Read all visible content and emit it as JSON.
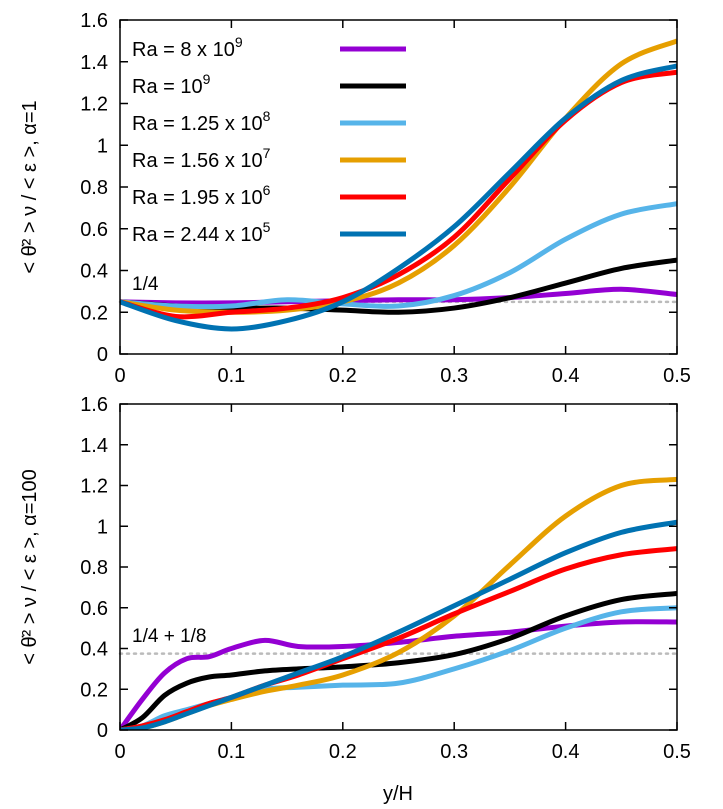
{
  "chart_data": [
    {
      "type": "line",
      "panel": "top",
      "ylabel": "< θ̇² > ν / < ε >,  α=1",
      "xlabel": "",
      "xlim": [
        0,
        0.5
      ],
      "ylim": [
        0,
        1.6
      ],
      "xticks": [
        0,
        0.1,
        0.2,
        0.3,
        0.4,
        0.5
      ],
      "xtick_labels": [
        "0",
        "0.1",
        "0.2",
        "0.3",
        "0.4",
        "0.5"
      ],
      "yticks": [
        0,
        0.2,
        0.4,
        0.6,
        0.8,
        1.0,
        1.2,
        1.4,
        1.6
      ],
      "ytick_labels": [
        "0",
        "0.2",
        "0.4",
        "0.6",
        "0.8",
        "1",
        "1.2",
        "1.4",
        "1.6"
      ],
      "legend_position": "top-left",
      "reference_line": {
        "value": 0.25,
        "label": "1/4",
        "color": "#bbbbbb"
      },
      "series": [
        {
          "name": "Ra = 8 x 10⁹",
          "legend_base": "Ra = 8 x 10",
          "legend_exp": "9",
          "color": "#9400d3",
          "x": [
            0,
            0.05,
            0.1,
            0.15,
            0.2,
            0.25,
            0.3,
            0.35,
            0.4,
            0.45,
            0.5
          ],
          "y": [
            0.25,
            0.245,
            0.245,
            0.25,
            0.255,
            0.26,
            0.26,
            0.27,
            0.29,
            0.31,
            0.285
          ]
        },
        {
          "name": "Ra = 10⁹",
          "legend_base": "Ra = 10",
          "legend_exp": "9",
          "color": "#000000",
          "x": [
            0,
            0.05,
            0.1,
            0.15,
            0.2,
            0.25,
            0.3,
            0.35,
            0.4,
            0.45,
            0.5
          ],
          "y": [
            0.25,
            0.23,
            0.22,
            0.22,
            0.21,
            0.2,
            0.22,
            0.27,
            0.34,
            0.41,
            0.45
          ]
        },
        {
          "name": "Ra = 1.25 x 10⁸",
          "legend_base": "Ra = 1.25 x 10",
          "legend_exp": "8",
          "color": "#56b4e9",
          "x": [
            0,
            0.05,
            0.1,
            0.15,
            0.2,
            0.25,
            0.3,
            0.35,
            0.4,
            0.45,
            0.5
          ],
          "y": [
            0.25,
            0.23,
            0.23,
            0.26,
            0.24,
            0.23,
            0.28,
            0.39,
            0.55,
            0.67,
            0.72
          ]
        },
        {
          "name": "Ra = 1.56 x 10⁷",
          "legend_base": "Ra = 1.56 x 10",
          "legend_exp": "7",
          "color": "#e69f00",
          "x": [
            0,
            0.05,
            0.1,
            0.15,
            0.2,
            0.25,
            0.3,
            0.35,
            0.4,
            0.45,
            0.5
          ],
          "y": [
            0.25,
            0.21,
            0.2,
            0.21,
            0.25,
            0.34,
            0.52,
            0.8,
            1.13,
            1.39,
            1.5
          ]
        },
        {
          "name": "Ra = 1.95 x 10⁶",
          "legend_base": "Ra = 1.95 x 10",
          "legend_exp": "6",
          "color": "#ff0000",
          "x": [
            0,
            0.05,
            0.1,
            0.15,
            0.2,
            0.25,
            0.3,
            0.35,
            0.4,
            0.45,
            0.5
          ],
          "y": [
            0.25,
            0.18,
            0.2,
            0.22,
            0.27,
            0.38,
            0.56,
            0.84,
            1.12,
            1.3,
            1.35
          ]
        },
        {
          "name": "Ra = 2.44 x 10⁵",
          "legend_base": "Ra = 2.44 x 10",
          "legend_exp": "5",
          "color": "#0072b2",
          "x": [
            0,
            0.05,
            0.1,
            0.15,
            0.2,
            0.25,
            0.3,
            0.35,
            0.4,
            0.45,
            0.5
          ],
          "y": [
            0.25,
            0.16,
            0.12,
            0.16,
            0.25,
            0.41,
            0.61,
            0.87,
            1.13,
            1.31,
            1.38
          ]
        }
      ]
    },
    {
      "type": "line",
      "panel": "bottom",
      "ylabel": "< θ̇² > ν / < ε >,  α=100",
      "xlabel": "y/H",
      "xlim": [
        0,
        0.5
      ],
      "ylim": [
        0,
        1.6
      ],
      "xticks": [
        0,
        0.1,
        0.2,
        0.3,
        0.4,
        0.5
      ],
      "xtick_labels": [
        "0",
        "0.1",
        "0.2",
        "0.3",
        "0.4",
        "0.5"
      ],
      "yticks": [
        0,
        0.2,
        0.4,
        0.6,
        0.8,
        1.0,
        1.2,
        1.4,
        1.6
      ],
      "ytick_labels": [
        "0",
        "0.2",
        "0.4",
        "0.6",
        "0.8",
        "1",
        "1.2",
        "1.4",
        "1.6"
      ],
      "reference_line": {
        "value": 0.375,
        "label": "1/4 + 1/8",
        "color": "#bbbbbb"
      },
      "series": [
        {
          "name": "Ra = 8 x 10⁹",
          "color": "#9400d3",
          "x": [
            0,
            0.02,
            0.04,
            0.06,
            0.08,
            0.1,
            0.13,
            0.16,
            0.2,
            0.25,
            0.3,
            0.35,
            0.4,
            0.45,
            0.5
          ],
          "y": [
            0,
            0.15,
            0.28,
            0.35,
            0.36,
            0.4,
            0.44,
            0.41,
            0.41,
            0.43,
            0.46,
            0.48,
            0.51,
            0.53,
            0.53
          ]
        },
        {
          "name": "Ra = 10⁹",
          "color": "#000000",
          "x": [
            0,
            0.02,
            0.04,
            0.06,
            0.08,
            0.1,
            0.13,
            0.16,
            0.2,
            0.25,
            0.3,
            0.35,
            0.4,
            0.45,
            0.5
          ],
          "y": [
            0,
            0.06,
            0.17,
            0.23,
            0.26,
            0.27,
            0.29,
            0.3,
            0.31,
            0.33,
            0.37,
            0.45,
            0.56,
            0.64,
            0.67
          ]
        },
        {
          "name": "Ra = 1.25 x 10⁸",
          "color": "#56b4e9",
          "x": [
            0,
            0.02,
            0.04,
            0.06,
            0.08,
            0.1,
            0.13,
            0.16,
            0.2,
            0.25,
            0.3,
            0.35,
            0.4,
            0.45,
            0.5
          ],
          "y": [
            0,
            0.02,
            0.07,
            0.1,
            0.13,
            0.16,
            0.2,
            0.21,
            0.22,
            0.23,
            0.3,
            0.39,
            0.5,
            0.58,
            0.6
          ]
        },
        {
          "name": "Ra = 1.56 x 10⁷",
          "color": "#e69f00",
          "x": [
            0,
            0.02,
            0.04,
            0.06,
            0.08,
            0.1,
            0.13,
            0.16,
            0.2,
            0.25,
            0.3,
            0.35,
            0.4,
            0.45,
            0.5
          ],
          "y": [
            0,
            0.01,
            0.04,
            0.08,
            0.12,
            0.15,
            0.19,
            0.22,
            0.27,
            0.38,
            0.56,
            0.81,
            1.05,
            1.2,
            1.23
          ]
        },
        {
          "name": "Ra = 1.95 x 10⁶",
          "color": "#ff0000",
          "x": [
            0,
            0.02,
            0.04,
            0.06,
            0.08,
            0.1,
            0.13,
            0.16,
            0.2,
            0.25,
            0.3,
            0.35,
            0.4,
            0.45,
            0.5
          ],
          "y": [
            0,
            0.02,
            0.05,
            0.09,
            0.13,
            0.16,
            0.22,
            0.27,
            0.35,
            0.45,
            0.57,
            0.68,
            0.79,
            0.86,
            0.89
          ]
        },
        {
          "name": "Ra = 2.44 x 10⁵",
          "color": "#0072b2",
          "x": [
            0,
            0.02,
            0.04,
            0.06,
            0.08,
            0.1,
            0.13,
            0.16,
            0.2,
            0.25,
            0.3,
            0.35,
            0.4,
            0.45,
            0.5
          ],
          "y": [
            0,
            0.01,
            0.04,
            0.08,
            0.12,
            0.16,
            0.22,
            0.28,
            0.36,
            0.48,
            0.61,
            0.74,
            0.87,
            0.97,
            1.02
          ]
        }
      ]
    }
  ]
}
